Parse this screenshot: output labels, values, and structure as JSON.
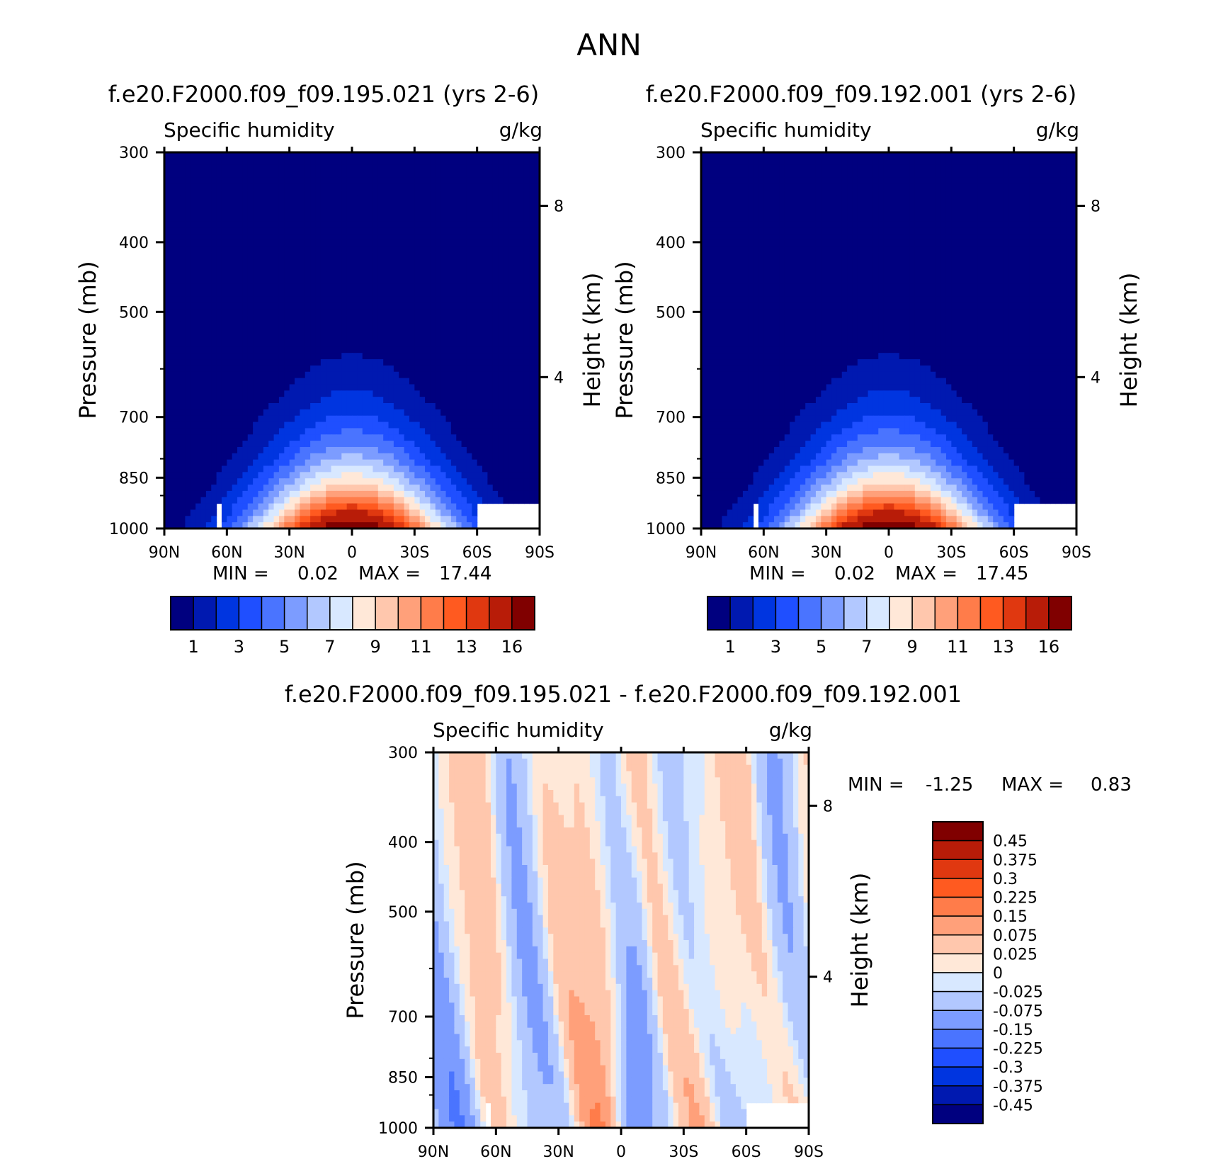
{
  "page_title": "ANN",
  "chart_data": [
    {
      "type": "heatmap",
      "title": "f.e20.F2000.f09_f09.195.021 (yrs 2-6)",
      "left_label": "Specific humidity",
      "right_label": "g/kg",
      "ylabel": "Pressure (mb)",
      "ylabel_right": "Height (km)",
      "x_ticks": [
        "90N",
        "60N",
        "30N",
        "0",
        "30S",
        "60S",
        "90S"
      ],
      "y_ticks": [
        "300",
        "400",
        "500",
        "700",
        "850",
        "1000"
      ],
      "y_right_ticks": [
        "8",
        "4"
      ],
      "ylim": [
        1000,
        300
      ],
      "min_label": "MIN =",
      "min_value": "0.02",
      "max_label": "MAX =",
      "max_value": "17.44",
      "levels": [
        1,
        2,
        3,
        4,
        5,
        6,
        7,
        8,
        9,
        10,
        11,
        12,
        13,
        14,
        16
      ],
      "colorbar_labels": [
        "1",
        "3",
        "5",
        "7",
        "9",
        "11",
        "13",
        "16"
      ],
      "colors": [
        "#00007f",
        "#0019b0",
        "#0035e0",
        "#1f4fff",
        "#4a74ff",
        "#7c9cff",
        "#b2c8ff",
        "#d8e8ff",
        "#ffe8d8",
        "#ffc7ad",
        "#ffa07a",
        "#ff7c4a",
        "#ff5a20",
        "#e03810",
        "#b81c08",
        "#800000"
      ],
      "peak": 17.44
    },
    {
      "type": "heatmap",
      "title": "f.e20.F2000.f09_f09.192.001 (yrs 2-6)",
      "left_label": "Specific humidity",
      "right_label": "g/kg",
      "ylabel": "Pressure (mb)",
      "ylabel_right": "Height (km)",
      "x_ticks": [
        "90N",
        "60N",
        "30N",
        "0",
        "30S",
        "60S",
        "90S"
      ],
      "y_ticks": [
        "300",
        "400",
        "500",
        "700",
        "850",
        "1000"
      ],
      "y_right_ticks": [
        "8",
        "4"
      ],
      "ylim": [
        1000,
        300
      ],
      "min_label": "MIN =",
      "min_value": "0.02",
      "max_label": "MAX =",
      "max_value": "17.45",
      "levels": [
        1,
        2,
        3,
        4,
        5,
        6,
        7,
        8,
        9,
        10,
        11,
        12,
        13,
        14,
        16
      ],
      "colorbar_labels": [
        "1",
        "3",
        "5",
        "7",
        "9",
        "11",
        "13",
        "16"
      ],
      "colors": [
        "#00007f",
        "#0019b0",
        "#0035e0",
        "#1f4fff",
        "#4a74ff",
        "#7c9cff",
        "#b2c8ff",
        "#d8e8ff",
        "#ffe8d8",
        "#ffc7ad",
        "#ffa07a",
        "#ff7c4a",
        "#ff5a20",
        "#e03810",
        "#b81c08",
        "#800000"
      ],
      "peak": 17.45
    },
    {
      "type": "heatmap",
      "title": "f.e20.F2000.f09_f09.195.021 - f.e20.F2000.f09_f09.192.001",
      "left_label": "Specific humidity",
      "right_label": "g/kg",
      "ylabel": "Pressure (mb)",
      "ylabel_right": "Height (km)",
      "x_ticks": [
        "90N",
        "60N",
        "30N",
        "0",
        "30S",
        "60S",
        "90S"
      ],
      "y_ticks": [
        "300",
        "400",
        "500",
        "700",
        "850",
        "1000"
      ],
      "y_right_ticks": [
        "8",
        "4"
      ],
      "ylim": [
        1000,
        300
      ],
      "min_label": "MIN =",
      "min_value": "-1.25",
      "max_label": "MAX =",
      "max_value": "0.83",
      "levels": [
        -0.45,
        -0.375,
        -0.3,
        -0.225,
        -0.15,
        -0.075,
        -0.025,
        0,
        0.025,
        0.075,
        0.15,
        0.225,
        0.3,
        0.375,
        0.45
      ],
      "colorbar_labels": [
        "0.45",
        "0.375",
        "0.3",
        "0.225",
        "0.15",
        "0.075",
        "0.025",
        "0",
        "-0.025",
        "-0.075",
        "-0.15",
        "-0.225",
        "-0.3",
        "-0.375",
        "-0.45"
      ],
      "colors": [
        "#00007f",
        "#0019b0",
        "#0035e0",
        "#1f4fff",
        "#4a74ff",
        "#7c9cff",
        "#b2c8ff",
        "#d8e8ff",
        "#ffe8d8",
        "#ffc7ad",
        "#ffa07a",
        "#ff7c4a",
        "#ff5a20",
        "#e03810",
        "#b81c08",
        "#800000"
      ]
    }
  ]
}
